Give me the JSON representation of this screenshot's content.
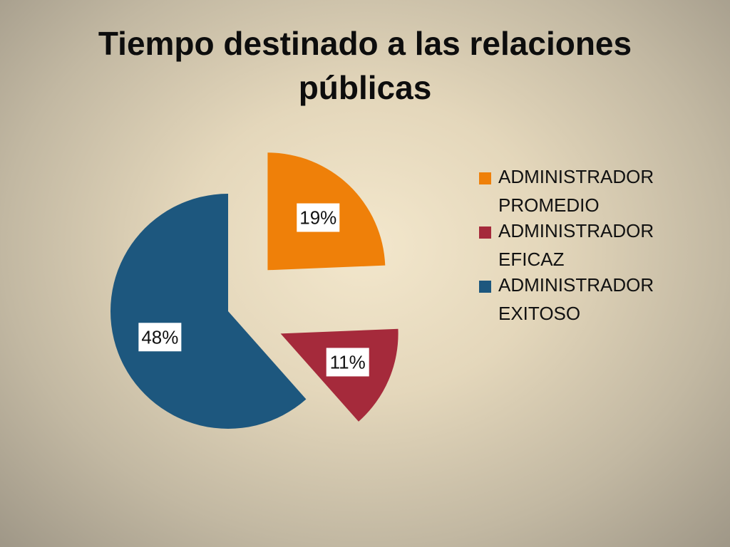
{
  "chart_data": {
    "type": "pie",
    "title_lines": [
      "Tiempo destinado a las relaciones",
      "públicas"
    ],
    "series": [
      {
        "name": "",
        "categories": [
          "ADMINISTRADOR PROMEDIO",
          "ADMINISTRADOR EFICAZ",
          "ADMINISTRADOR EXITOSO"
        ],
        "values": [
          19,
          11,
          48
        ],
        "labels": [
          "19%",
          "11%",
          "48%"
        ],
        "colors": [
          "#ef8009",
          "#a52a3b",
          "#1d577e"
        ]
      }
    ],
    "legend": {
      "placement": "right",
      "entries": [
        {
          "line1": "ADMINISTRADOR",
          "line2": "PROMEDIO"
        },
        {
          "line1": "ADMINISTRADOR",
          "line2": "EFICAZ"
        },
        {
          "line1": "ADMINISTRADOR",
          "line2": "EXITOSO"
        }
      ]
    },
    "exploded": true
  }
}
